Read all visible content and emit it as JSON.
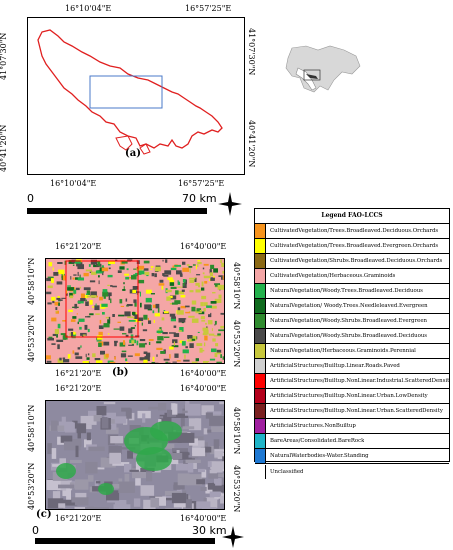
{
  "panel_a": {
    "label": "(a)",
    "top_left_lon": "16°10'04\"E",
    "top_right_lon": "16°57'25\"E",
    "bottom_left_lon": "16°10'04\"E",
    "bottom_right_lon": "16°57'25\"E",
    "left_top_lat": "41°07'30\"N",
    "left_bottom_lat": "40°41'20\"N",
    "right_top_lat": "41°07'30\"N",
    "right_bottom_lat": "40°41'20\"N",
    "scale_start": "0",
    "scale_end": "70 km",
    "outline_color": "#e02020",
    "inset_box_color": "#4a78c8"
  },
  "panel_b": {
    "label": "(b)",
    "top_left_lon": "16°21'20\"E",
    "top_right_lon": "16°40'00\"E",
    "bottom_left_lon": "16°21'20\"E",
    "bottom_right_lon": "16°40'00\"E",
    "left_top_lat": "40°58'10\"N",
    "left_bottom_lat": "40°53'20\"N",
    "right_top_lat": "40°58'10\"N",
    "right_bottom_lat": "40°53'20\"N"
  },
  "panel_c": {
    "label": "(c)",
    "top_left_lon": "16°21'20\"E",
    "top_right_lon": "16°40'00\"E",
    "bottom_left_lon": "16°21'20\"E",
    "bottom_right_lon": "16°40'00\"E",
    "left_top_lat": "40°58'10\"N",
    "left_bottom_lat": "40°53'20\"N",
    "right_top_lat": "40°58'10\"N",
    "right_bottom_lat": "40°53'20\"N",
    "scale_start": "0",
    "scale_end": "30 km"
  },
  "legend": {
    "title": "Legend FAO-LCCS",
    "items": [
      {
        "label": "CultivatedVegetation/Trees.Broadleaved.Deciduous.Orchards",
        "color": "#f7941d"
      },
      {
        "label": "CultivatedVegetation/Trees.Broadleaved.Evergreen.Orchards",
        "color": "#ffff00"
      },
      {
        "label": "CultivatedVegetation/Shrubs.Broadleaved.Deciduous.Orchards",
        "color": "#8b6914"
      },
      {
        "label": "CultivatedVegetation/Herbaceous.Graminoids",
        "color": "#f4a6a6"
      },
      {
        "label": "NaturalVegetation/Woody.Trees.Broadleaved.Deciduous",
        "color": "#22b14c"
      },
      {
        "label": "NaturalVegetation/ Woody.Trees.Needleleaved.Evergreen",
        "color": "#0f6b1e"
      },
      {
        "label": "NaturalVegetation/Woody.Shrubs.Broadleaved.Evergreen",
        "color": "#2e8b2e"
      },
      {
        "label": "NaturalVegetation/Woody.Shrubs.Broadleaved.Deciduous",
        "color": "#4a4a4a"
      },
      {
        "label": "NaturalVegetation/Herbaceous.Graminoids.Perennial",
        "color": "#c8c83c"
      },
      {
        "label": "ArtificialStructures/Builtup.Linear.Roads.Paved",
        "color": "#d0d0d0"
      },
      {
        "label": "ArtificialStructures/Builtup.NonLinear.Industrial.ScatteredDensity",
        "color": "#ff0000"
      },
      {
        "label": "ArtificialStructures/Builtup.NonLinear.Urban.LowDensity",
        "color": "#b3001b"
      },
      {
        "label": "ArtificialStructures/Builtup.NonLinear.Urban.ScatteredDensity",
        "color": "#7a1f1f"
      },
      {
        "label": "ArtificialStructures.NonBuiltup",
        "color": "#a020a0"
      },
      {
        "label": "BareAreas/Consolidated.BareRock",
        "color": "#1eb4c8"
      },
      {
        "label": "NaturalWaterbodies-Water.Standing",
        "color": "#1e78d2"
      },
      {
        "label": "Unclassified",
        "color": "#ffffff"
      }
    ]
  }
}
